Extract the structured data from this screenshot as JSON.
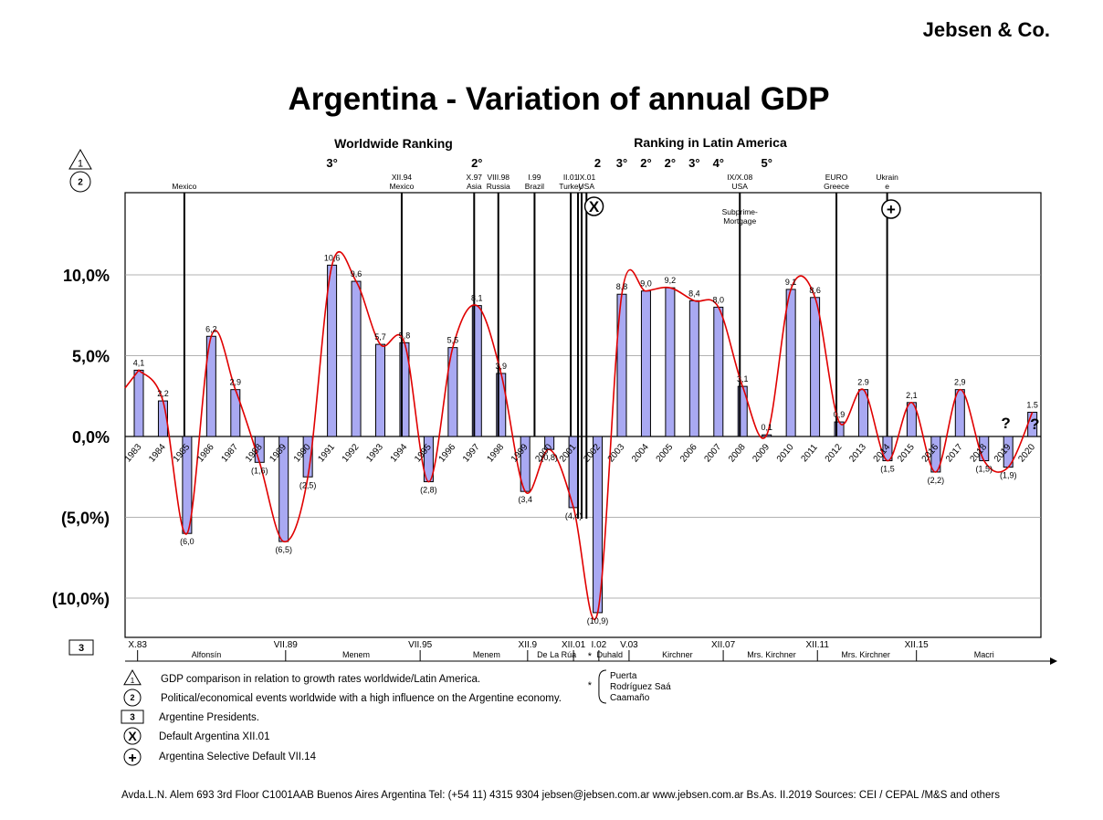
{
  "brand": "Jebsen & Co.",
  "footer": "Avda.L.N. Alem 693 3rd Floor  C1001AAB Buenos Aires  Argentina  Tel: (+54 11) 4315 9304   jebsen@jebsen.com.ar  www.jebsen.com.ar   Bs.As. II.2019   Sources: CEI / CEPAL /M&S and others",
  "chart_data": {
    "type": "bar",
    "title": "Argentina - Variation of annual GDP",
    "ylim": [
      -12.5,
      15
    ],
    "y_ticks": [
      {
        "value": 10,
        "label": "10,0%"
      },
      {
        "value": 5,
        "label": "5,0%"
      },
      {
        "value": 0,
        "label": "0,0%"
      },
      {
        "value": -5,
        "label": "(5,0%)"
      },
      {
        "value": -10,
        "label": "(10,0%)"
      }
    ],
    "grid": true,
    "bar_color": "#a9a9f2",
    "trend_color": "#e00000",
    "categories": [
      "1983",
      "1984",
      "1985",
      "1986",
      "1987",
      "1988",
      "1989",
      "1990",
      "1991",
      "1992",
      "1993",
      "1994",
      "1995",
      "1996",
      "1997",
      "1998",
      "1999",
      "2000",
      "2001",
      "2002",
      "2003",
      "2004",
      "2005",
      "2006",
      "2007",
      "2008",
      "2009",
      "2010",
      "2011",
      "2012",
      "2013",
      "2014",
      "2015",
      "2016",
      "2017",
      "2018",
      "2019",
      "2020"
    ],
    "values": [
      4.1,
      2.2,
      -6.0,
      6.2,
      2.9,
      -1.6,
      -6.5,
      -2.5,
      10.6,
      9.6,
      5.7,
      5.8,
      -2.8,
      5.5,
      8.1,
      3.9,
      -3.4,
      -0.8,
      -4.4,
      -10.9,
      8.8,
      9.0,
      9.2,
      8.4,
      8.0,
      3.1,
      0.1,
      9.1,
      8.6,
      0.9,
      2.9,
      -1.5,
      2.1,
      -2.2,
      2.9,
      -1.5,
      -1.9,
      1.5
    ],
    "value_labels": [
      "4,1",
      "2,2",
      "(6,0",
      "6,2",
      "2,9",
      "(1,6)",
      "(6,5)",
      "(2,5)",
      "10,6",
      "9,6",
      "5,7",
      "5,8",
      "(2,8)",
      "5,5",
      "8,1",
      "3,9",
      "(3,4",
      "(0,8)",
      "(4,4)",
      "(10,9)",
      "8,8",
      "9,0",
      "9,2",
      "8,4",
      "8,0",
      "3,1",
      "0,1",
      "9,1",
      "8,6",
      "0,9",
      "2.9",
      "(1,5",
      "2,1",
      "(2,2)",
      "2,9",
      "(1,5)",
      "(1,9)",
      "1.5"
    ],
    "question_marks": [
      "?",
      "?"
    ],
    "ranking_headers": {
      "worldwide": "Worldwide Ranking",
      "latin_america": "Ranking in Latin America"
    },
    "rankings": [
      {
        "index": 8,
        "label": "3°"
      },
      {
        "index": 14,
        "label": "2°"
      },
      {
        "index": 19,
        "label": "2"
      },
      {
        "index": 20,
        "label": "3°"
      },
      {
        "index": 21,
        "label": "2°"
      },
      {
        "index": 22,
        "label": "2°"
      },
      {
        "index": 23,
        "label": "3°"
      },
      {
        "index": 24,
        "label": "4°"
      },
      {
        "index": 26,
        "label": "5°"
      }
    ],
    "events": [
      {
        "pos": 2,
        "lines": [
          "Mexico"
        ]
      },
      {
        "pos": 11,
        "lines": [
          "XII.94",
          "Mexico"
        ]
      },
      {
        "pos": 14,
        "lines": [
          "X.97",
          "Asia"
        ]
      },
      {
        "pos": 15,
        "lines": [
          "VIII.98",
          "Russia"
        ]
      },
      {
        "pos": 16.5,
        "lines": [
          "I.99",
          "Brazil"
        ]
      },
      {
        "pos": 18,
        "lines": [
          "II.01",
          "Turkey"
        ]
      },
      {
        "pos": 18.65,
        "lines": [
          "IX.01",
          "USA"
        ]
      },
      {
        "pos": 25,
        "lines": [
          "IX/X.08",
          "USA"
        ]
      },
      {
        "pos": 29,
        "lines": [
          "EURO",
          "Greece"
        ]
      },
      {
        "pos": 31.1,
        "lines": [
          "Ukrain",
          "e"
        ]
      }
    ],
    "annotations": [
      {
        "text": "Subprime-\nMortgage"
      }
    ],
    "presidents_timeline": [
      {
        "date": "X.83",
        "pos": -0.05
      },
      {
        "date": "VII.89",
        "pos": 6.08
      },
      {
        "date": "VII.95",
        "pos": 11.65
      },
      {
        "date": "XII.9",
        "pos": 16.1
      },
      {
        "date": "XII.01",
        "pos": 18.0
      },
      {
        "date": "I.02",
        "pos": 19.05
      },
      {
        "date": "V.03",
        "pos": 20.3
      },
      {
        "date": "XII.07",
        "pos": 24.2
      },
      {
        "date": "XII.11",
        "pos": 28.1
      },
      {
        "date": "XII.15",
        "pos": 32.2
      }
    ],
    "presidents": [
      {
        "name": "Alfonsín",
        "pos": 2.8
      },
      {
        "name": "Menem",
        "pos": 9.0
      },
      {
        "name": "Menem",
        "pos": 14.4
      },
      {
        "name": "De La Rúa",
        "pos": 17.3
      },
      {
        "name": "Duhald",
        "pos": 19.5
      },
      {
        "name": "Kirchner",
        "pos": 22.3
      },
      {
        "name": "Mrs. Kirchner",
        "pos": 26.2
      },
      {
        "name": "Mrs. Kirchner",
        "pos": 30.1
      },
      {
        "name": "Macri",
        "pos": 35.0
      }
    ],
    "interim_presidents": [
      "Puerta",
      "Rodríguez Saá",
      "Caamaño"
    ],
    "legend": [
      {
        "marker": "1",
        "text": "GDP comparison in relation to growth rates worldwide/Latin America."
      },
      {
        "marker": "2",
        "text": "Political/economical events worldwide with a high influence on the Argentine economy."
      },
      {
        "marker": "3",
        "text": "Argentine Presidents."
      },
      {
        "marker": "X",
        "text": "Default Argentina XII.01"
      },
      {
        "marker": "+",
        "text": "Argentina Selective Default VII.14"
      }
    ],
    "row_markers": [
      "1",
      "2",
      "3"
    ],
    "default_markers": [
      "X",
      "+"
    ],
    "star": "*"
  }
}
